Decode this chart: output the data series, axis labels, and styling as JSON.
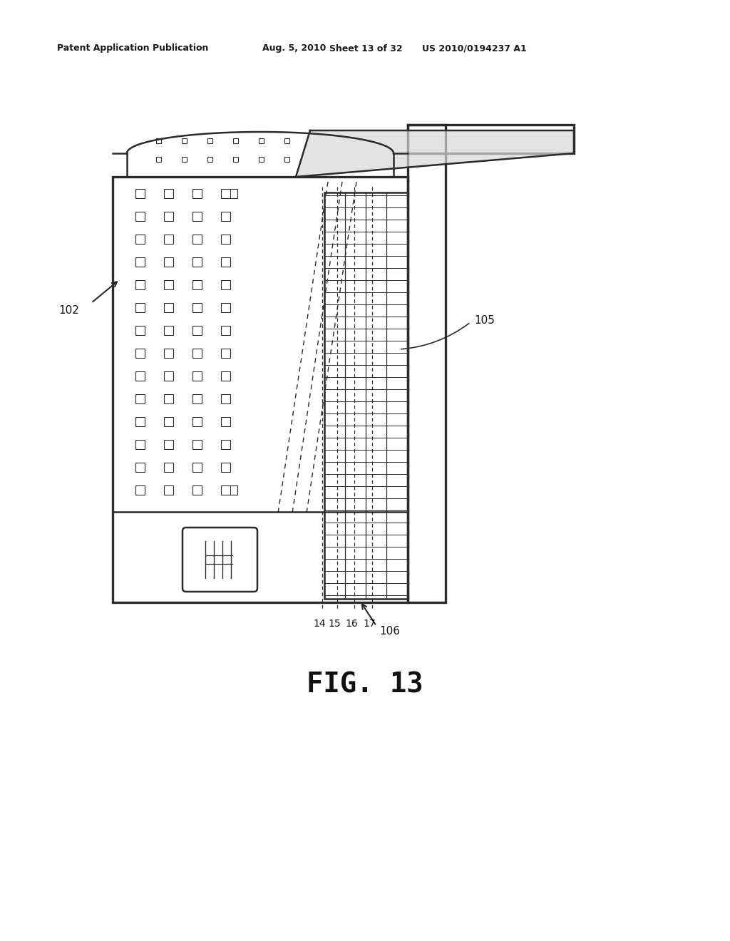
{
  "bg_color": "#ffffff",
  "lc": "#2a2a2a",
  "header_left": "Patent Application Publication",
  "header_date": "Aug. 5, 2010",
  "header_sheet": "Sheet 13 of 32",
  "header_patent": "US 2010/0194237 A1",
  "fig_label": "FIG. 13",
  "lw_thin": 1.0,
  "lw_med": 1.8,
  "lw_thick": 2.4
}
